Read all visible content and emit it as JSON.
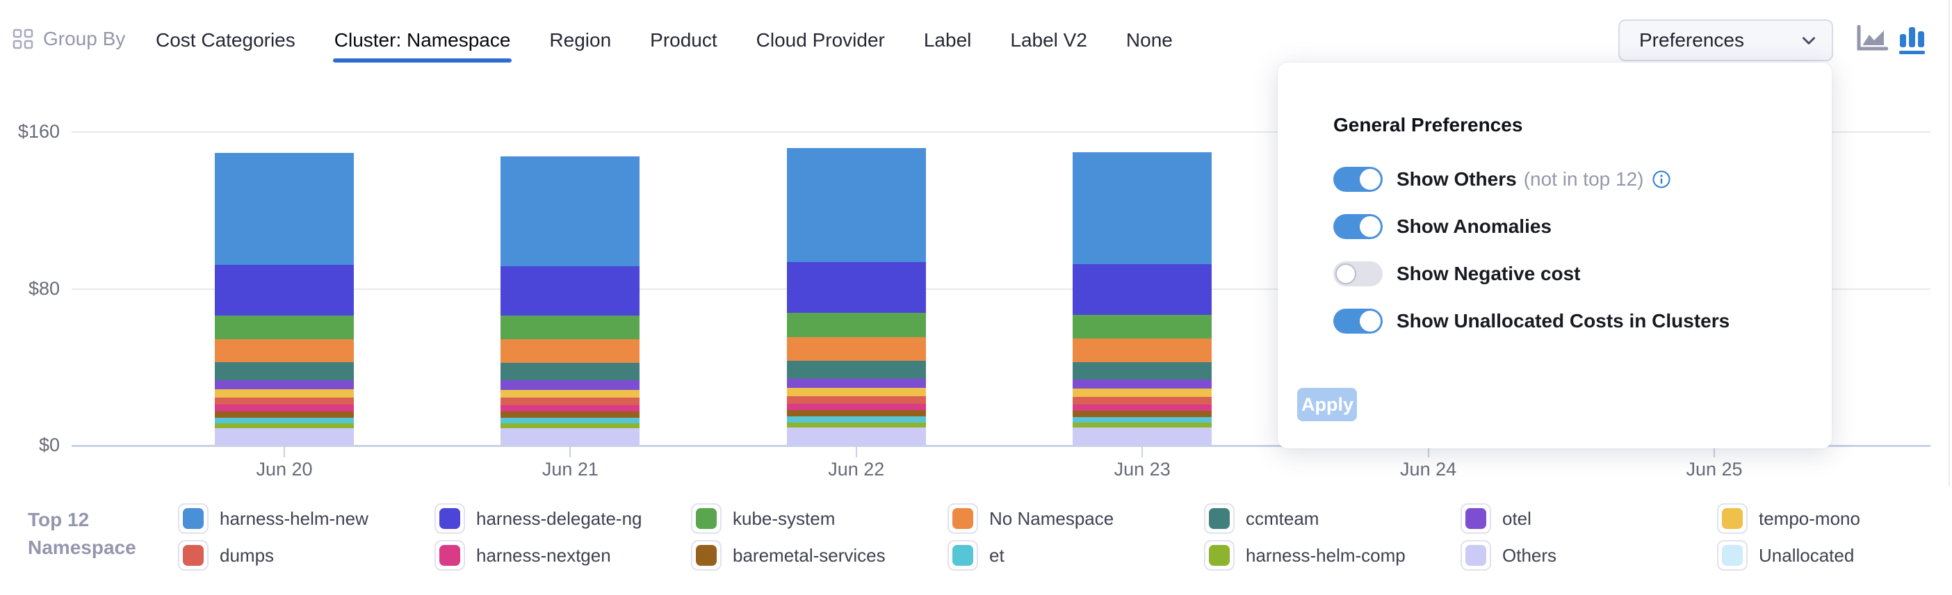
{
  "header": {
    "group_by_label": "Group By",
    "tabs": [
      {
        "label": "Cost Categories",
        "active": false
      },
      {
        "label": "Cluster: Namespace",
        "active": true
      },
      {
        "label": "Region",
        "active": false
      },
      {
        "label": "Product",
        "active": false
      },
      {
        "label": "Cloud Provider",
        "active": false
      },
      {
        "label": "Label",
        "active": false
      },
      {
        "label": "Label V2",
        "active": false
      },
      {
        "label": "None",
        "active": false
      }
    ],
    "preferences_button": {
      "label": "Preferences"
    },
    "chart_type_toggle": {
      "area_active": false,
      "bar_active": true
    },
    "accent_color": "#2e6bd3"
  },
  "popup": {
    "title": "General Preferences",
    "toggles": [
      {
        "label": "Show Others",
        "suffix": "(not in top 12)",
        "has_info_icon": true,
        "on": true
      },
      {
        "label": "Show Anomalies",
        "suffix": "",
        "has_info_icon": false,
        "on": true
      },
      {
        "label": "Show Negative cost",
        "suffix": "",
        "has_info_icon": false,
        "on": false
      },
      {
        "label": "Show Unallocated Costs in Clusters",
        "suffix": "",
        "has_info_icon": false,
        "on": true
      }
    ],
    "apply_label": "Apply",
    "toggle_on_color": "#4a91dc"
  },
  "legend": {
    "title_line1": "Top 12",
    "title_line2": "Namespace",
    "columns": [
      [
        {
          "label": "harness-helm-new",
          "color": "#4a90d9"
        },
        {
          "label": "dumps",
          "color": "#d96052"
        }
      ],
      [
        {
          "label": "harness-delegate-ng",
          "color": "#4b46d8"
        },
        {
          "label": "harness-nextgen",
          "color": "#d93b86"
        }
      ],
      [
        {
          "label": "kube-system",
          "color": "#5aa64f"
        },
        {
          "label": "baremetal-services",
          "color": "#96611d"
        }
      ],
      [
        {
          "label": "No Namespace",
          "color": "#ec8a44"
        },
        {
          "label": "et",
          "color": "#56c5d5"
        }
      ],
      [
        {
          "label": "ccmteam",
          "color": "#417f7c"
        },
        {
          "label": "harness-helm-comp",
          "color": "#8db32f"
        }
      ],
      [
        {
          "label": "otel",
          "color": "#7d4ed2"
        },
        {
          "label": "Others",
          "color": "#cbcbf6"
        }
      ],
      [
        {
          "label": "tempo-mono",
          "color": "#efc14a"
        },
        {
          "label": "Unallocated",
          "color": "#cfecfa"
        }
      ]
    ]
  },
  "chart_data": {
    "type": "bar",
    "stacked": true,
    "x": [
      "Jun 20",
      "Jun 21",
      "Jun 22",
      "Jun 23",
      "Jun 24",
      "Jun 25"
    ],
    "y_ticks": [
      {
        "label": "$160",
        "value": 160
      },
      {
        "label": "$80",
        "value": 80
      },
      {
        "label": "$0",
        "value": 0
      }
    ],
    "ylim": [
      0,
      160
    ],
    "grid": "horizontal",
    "legend_position": "bottom",
    "note": "Bars for Jun 24 and Jun 25 are obscured by the open Preferences popover",
    "series": [
      {
        "name": "Others",
        "color": "#cbcbf6",
        "values": [
          9,
          8.8,
          9.3,
          9.2,
          null,
          null
        ]
      },
      {
        "name": "harness-helm-comp",
        "color": "#8db32f",
        "values": [
          2.4,
          2.4,
          2.4,
          2.4,
          null,
          null
        ]
      },
      {
        "name": "et",
        "color": "#56c5d5",
        "values": [
          2.9,
          2.9,
          3,
          2.9,
          null,
          null
        ]
      },
      {
        "name": "baremetal-services",
        "color": "#96611d",
        "values": [
          3.2,
          3.2,
          3.2,
          3.2,
          null,
          null
        ]
      },
      {
        "name": "harness-nextgen",
        "color": "#d93b86",
        "values": [
          3.3,
          3.3,
          3.4,
          3.3,
          null,
          null
        ]
      },
      {
        "name": "dumps",
        "color": "#d96052",
        "values": [
          3.8,
          3.8,
          3.9,
          3.8,
          null,
          null
        ]
      },
      {
        "name": "tempo-mono",
        "color": "#efc14a",
        "values": [
          4.1,
          4.1,
          4.3,
          4.2,
          null,
          null
        ]
      },
      {
        "name": "otel",
        "color": "#7d4ed2",
        "values": [
          4.7,
          4.7,
          4.7,
          4.7,
          null,
          null
        ]
      },
      {
        "name": "ccmteam",
        "color": "#417f7c",
        "values": [
          9,
          9,
          9,
          9,
          null,
          null
        ]
      },
      {
        "name": "No Namespace",
        "color": "#ec8a44",
        "values": [
          12,
          12,
          12,
          12,
          null,
          null
        ]
      },
      {
        "name": "kube-system",
        "color": "#5aa64f",
        "values": [
          12,
          12,
          12.5,
          12,
          null,
          null
        ]
      },
      {
        "name": "harness-delegate-ng",
        "color": "#4b46d8",
        "values": [
          26,
          25.5,
          26,
          26,
          null,
          null
        ]
      },
      {
        "name": "harness-helm-new",
        "color": "#4a90d9",
        "values": [
          57,
          56,
          58,
          57,
          null,
          null
        ]
      },
      {
        "name": "Unallocated",
        "color": "#cfecfa",
        "values": [
          0,
          0,
          0,
          0,
          null,
          null
        ]
      }
    ]
  }
}
